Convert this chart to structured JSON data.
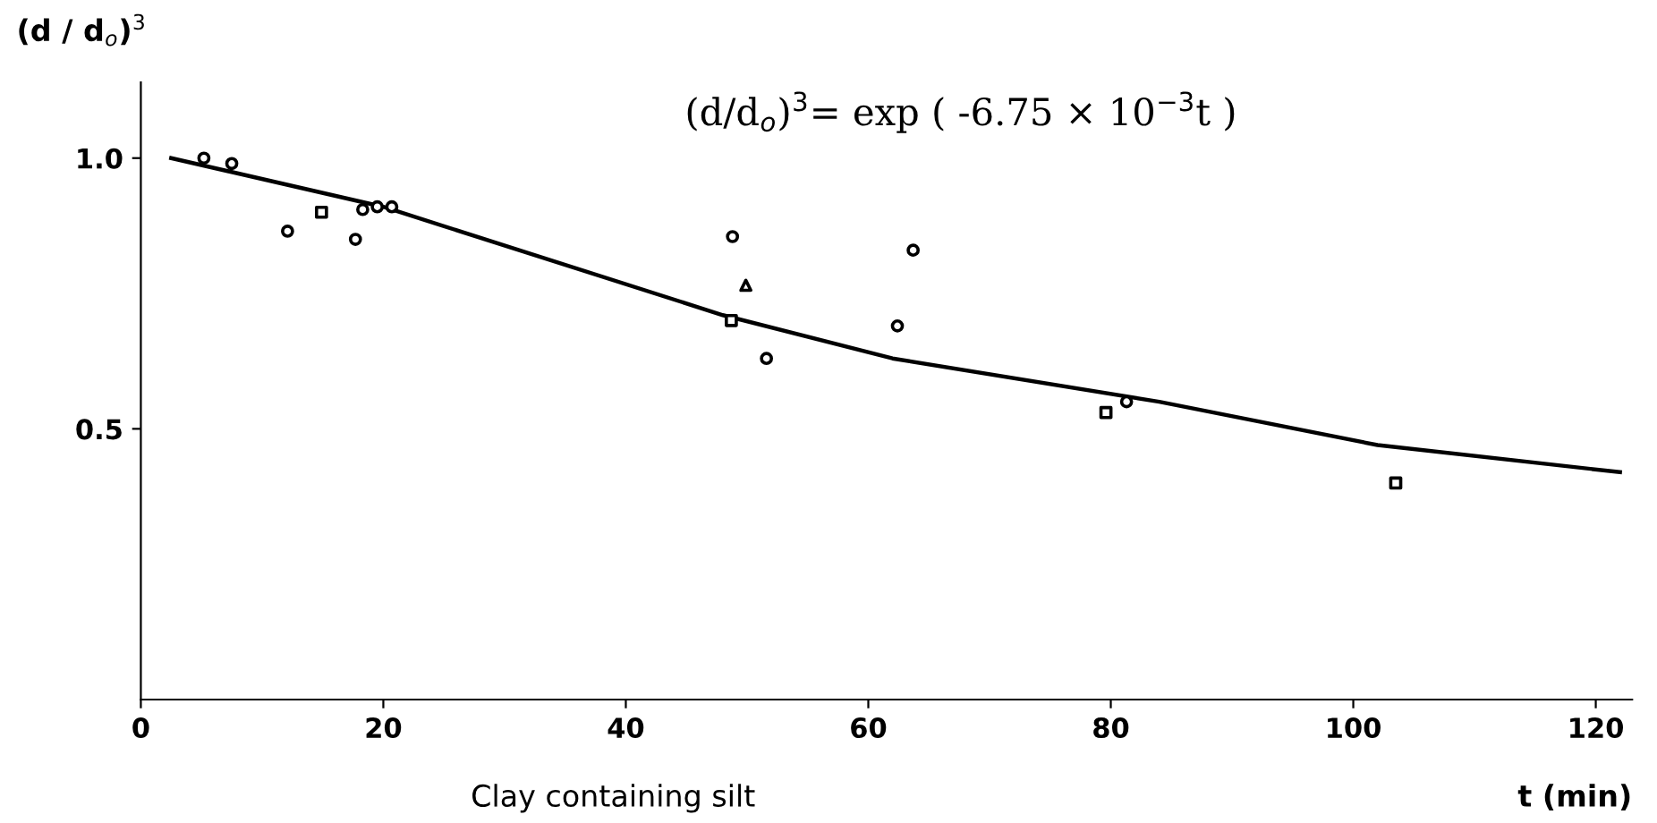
{
  "chart_data": {
    "type": "scatter",
    "title": "(d/d$_{o}$)$^{3}$= exp ( -6.75 × 10$^{−3}$t )",
    "ylabel": "(d / d$_{o}$)$^{3}$",
    "xlabel": "t (min)",
    "annotations": [
      "Clay containing silt"
    ],
    "xlim": [
      0,
      123
    ],
    "ylim": [
      0,
      1.14
    ],
    "xticks": [
      0,
      20,
      40,
      60,
      80,
      100,
      120
    ],
    "yticks": [
      0.5,
      {
        "value": 1.0,
        "label": "1.0"
      }
    ],
    "grid": false,
    "series": [
      {
        "marker": "circle",
        "color": "#000000",
        "x": [
          5.2,
          7.5,
          12.1,
          17.7,
          18.3,
          19.5,
          20.7,
          51.6,
          62.4,
          48.8,
          63.7,
          81.3
        ],
        "values": [
          1.0,
          0.99,
          0.865,
          0.85,
          0.905,
          0.91,
          0.91,
          0.63,
          0.69,
          0.855,
          0.83,
          0.55
        ]
      },
      {
        "marker": "square",
        "color": "#000000",
        "x": [
          14.9,
          48.7,
          79.6,
          103.5
        ],
        "values": [
          0.9,
          0.7,
          0.53,
          0.4
        ]
      },
      {
        "marker": "triangle",
        "color": "#000000",
        "x": [
          49.9
        ],
        "values": [
          0.765
        ]
      },
      {
        "type": "line",
        "marker": "none",
        "color": "#000000",
        "x": [
          2.5,
          20,
          48,
          62,
          84,
          102,
          122
        ],
        "values": [
          1.0,
          0.91,
          0.71,
          0.63,
          0.55,
          0.47,
          0.42
        ]
      }
    ]
  }
}
